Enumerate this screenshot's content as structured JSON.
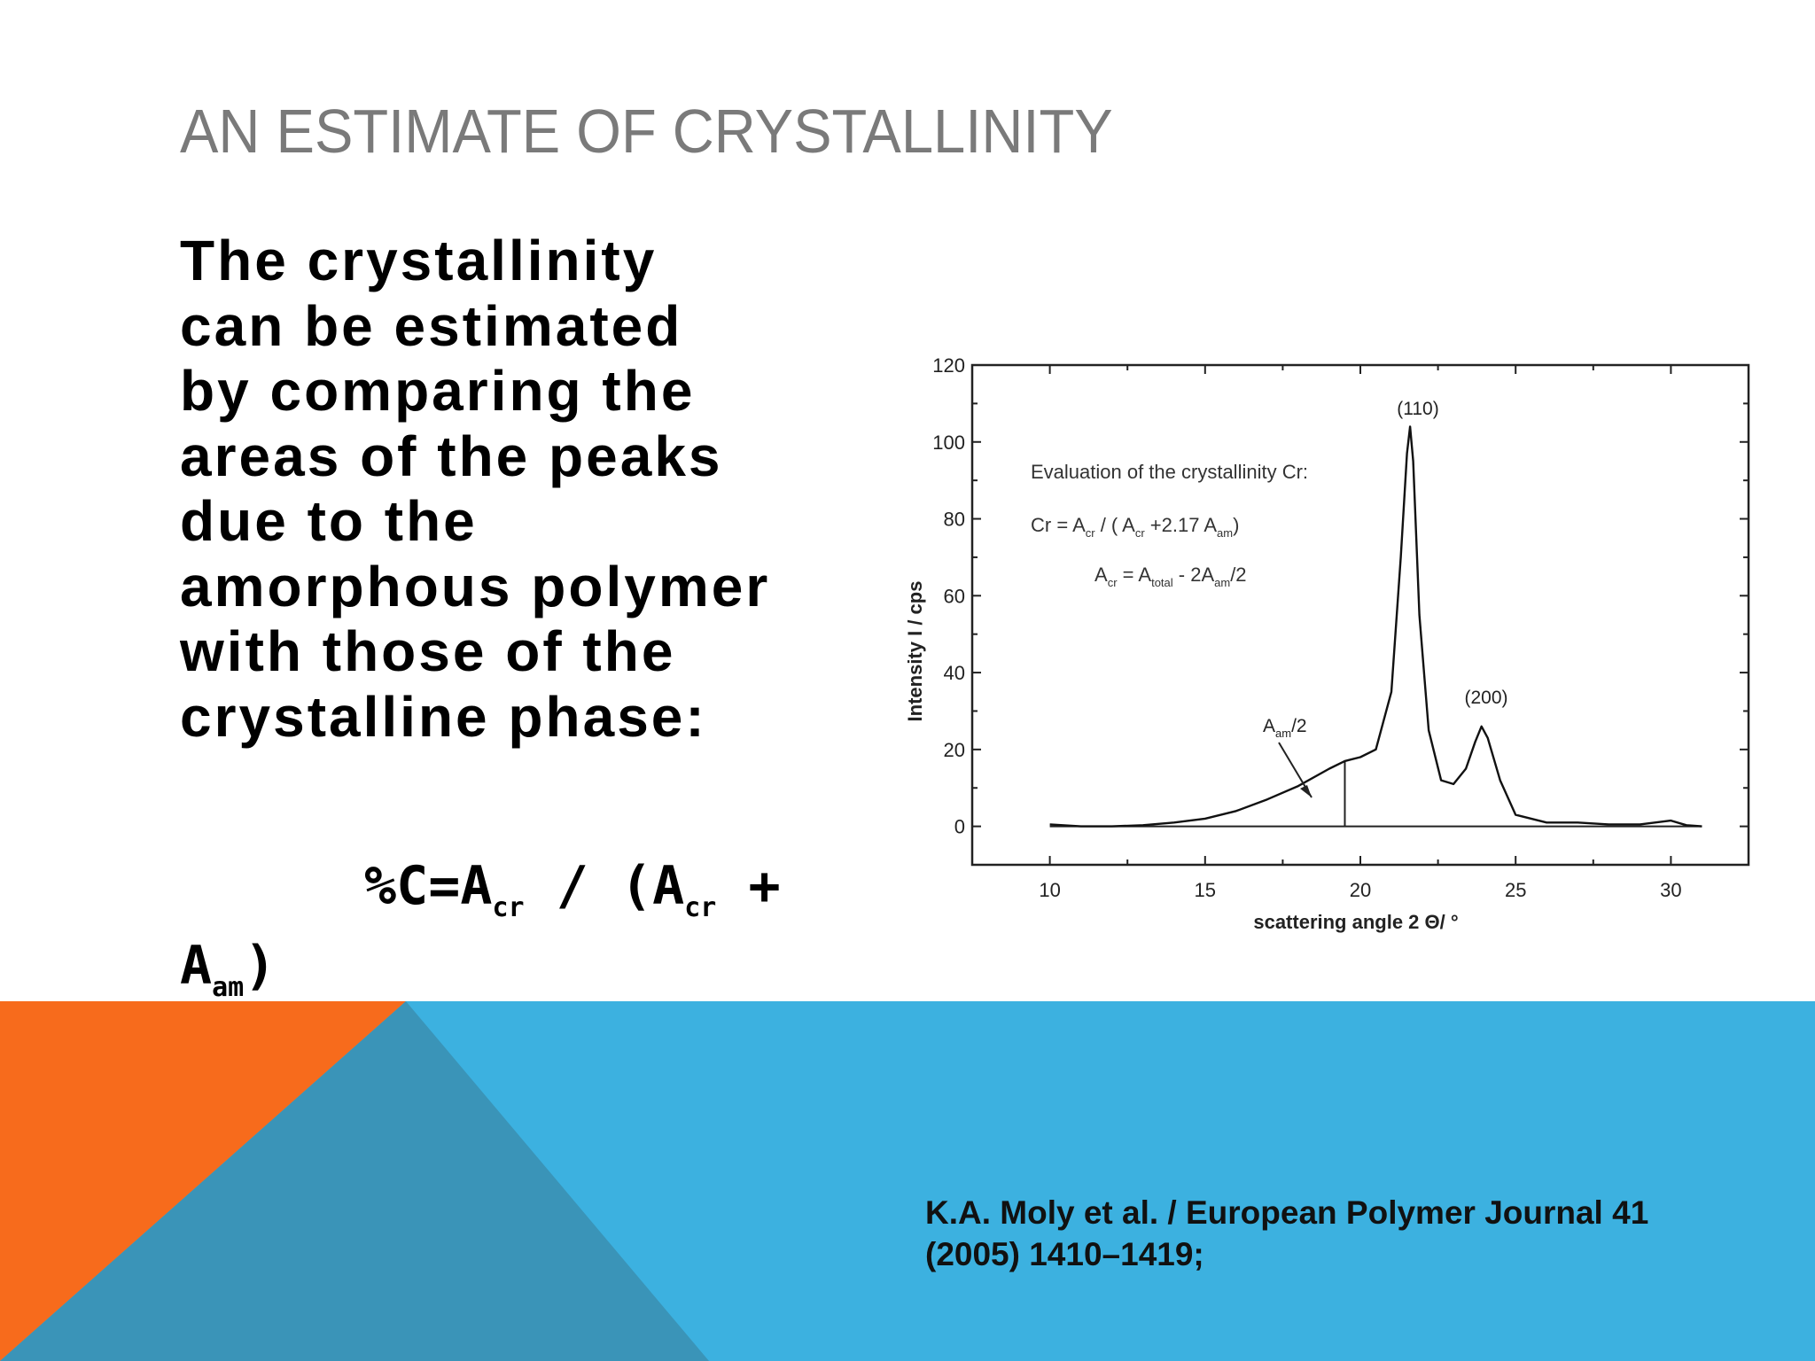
{
  "slide": {
    "title": "AN ESTIMATE OF CRYSTALLINITY",
    "body_lines": [
      "The crystallinity",
      "can be estimated",
      "by comparing the",
      "areas of the peaks",
      "due to the",
      "amorphous polymer",
      "with those of the",
      "crystalline phase:"
    ],
    "formula": {
      "lhs": "%C=A",
      "sub_cr": "cr",
      "mid": " / (A",
      "sub_cr2": "cr",
      "plus": " +",
      "a": "A",
      "sub_am": "am",
      "close": ")"
    },
    "citation_lines": [
      "K.A. Moly et al. / European Polymer Journal 41",
      "(2005) 1410–1419;"
    ],
    "colors": {
      "banner_blue": "#3cb1e0",
      "banner_teal": "#3a94b8",
      "banner_orange": "#f76b1c"
    }
  },
  "chart_data": {
    "type": "line",
    "xlabel": "scattering angle 2 Θ/ °",
    "ylabel": "Intensity I / cps",
    "xlim": [
      7.5,
      32.5
    ],
    "ylim": [
      -10,
      120
    ],
    "xticks": [
      10,
      15,
      20,
      25,
      30
    ],
    "yticks": [
      0,
      20,
      40,
      60,
      80,
      100,
      120
    ],
    "x": [
      10,
      11,
      12,
      13,
      14,
      15,
      16,
      17,
      18,
      19,
      19.5,
      20,
      20.5,
      21,
      21.3,
      21.5,
      21.6,
      21.7,
      21.9,
      22.2,
      22.6,
      23,
      23.4,
      23.7,
      23.9,
      24.1,
      24.5,
      25,
      26,
      27,
      28,
      29,
      30,
      30.5,
      31
    ],
    "y": [
      0.5,
      0,
      0,
      0.3,
      1,
      2,
      4,
      7,
      10.5,
      15,
      17,
      18,
      20,
      35,
      70,
      97,
      104,
      95,
      55,
      25,
      12,
      11,
      15,
      22,
      26,
      23,
      12,
      3,
      1,
      1,
      0.5,
      0.5,
      1.5,
      0.3,
      0
    ],
    "baseline": [
      10,
      31
    ],
    "divider_x": 19.5,
    "annotations": {
      "peak_110": "(110)",
      "peak_200": "(200)",
      "aam_prefix": "A",
      "aam_sub": "am",
      "aam_suffix": "/2",
      "eval_title": "Evaluation of the crystallinity Cr:",
      "eq1_parts": [
        "Cr = A",
        "cr",
        " / ( A",
        "cr",
        " +2.17 A",
        "am",
        ")"
      ],
      "eq2_parts": [
        "A",
        "cr",
        " = A",
        "total",
        " - 2A",
        "am",
        "/2"
      ]
    },
    "grid": false
  }
}
